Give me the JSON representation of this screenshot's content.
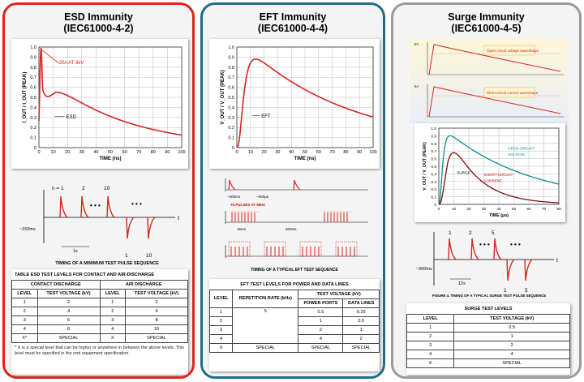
{
  "esd": {
    "title_line1": "ESD Immunity",
    "title_line2": "(IEC61000-4-2)",
    "graph": {
      "ylabel": "I_OUT / I_OUT (PEAK)",
      "xlabel": "TIME (ns)",
      "xticks": [
        "0",
        "10",
        "20",
        "30",
        "40",
        "50",
        "60",
        "70",
        "80",
        "90",
        "100"
      ],
      "yticks": [
        "0",
        "0.1",
        "0.2",
        "0.3",
        "0.4",
        "0.5",
        "0.6",
        "0.7",
        "0.8",
        "0.9",
        "1.0"
      ],
      "annotation": "30A AT 8kV",
      "curve_label": "ESD"
    },
    "pulse": {
      "labels": [
        "n = 1",
        "2",
        "10",
        "1",
        "10"
      ],
      "t_label": "t",
      "gap_label": "~150ms",
      "period_label": "1s",
      "caption": "TIMING OF A MINIMUM TEST PULSE SEQUENCE"
    },
    "table": {
      "caption": "TABLE     ESD TEST LEVELS FOR CONTACT AND AIR-DISCHARGE",
      "group_headers": [
        "CONTACT DISCHARGE",
        "AIR DISCHARGE"
      ],
      "col_headers": [
        "LEVEL",
        "TEST VOLTAGE (kV)",
        "LEVEL",
        "TEST VOLTAGE (kV)"
      ],
      "rows": [
        [
          "1",
          "2",
          "1",
          "2"
        ],
        [
          "2",
          "4",
          "2",
          "4"
        ],
        [
          "3",
          "6",
          "3",
          "8"
        ],
        [
          "4",
          "8",
          "4",
          "15"
        ],
        [
          "X*",
          "SPECIAL",
          "X",
          "SPECIAL"
        ]
      ],
      "note": "* X is a special level that can be higher or anywhere in between the above levels. This level must be specified in the end equipment specification."
    }
  },
  "eft": {
    "title_line1": "EFT Immunity",
    "title_line2": "(IEC61000-4-4)",
    "graph": {
      "ylabel": "V_OUT / V_OUT (PEAK)",
      "xlabel": "TIME (ns)",
      "xticks": [
        "0",
        "10",
        "20",
        "30",
        "40",
        "50",
        "60",
        "70",
        "80",
        "90",
        "100"
      ],
      "yticks": [
        "0",
        "0.1",
        "0.2",
        "0.3",
        "0.4",
        "0.5",
        "0.6",
        "0.7",
        "0.8",
        "0.9",
        "1.0"
      ],
      "curve_label": "EFT"
    },
    "sequence": {
      "caption": "TIMING OF A TYPICAL EFT TEST SEQUENCE",
      "labels": [
        "~400ms",
        "~300μs",
        "75 PULSES AT 5kHz",
        "15ms",
        "300ms"
      ]
    },
    "table": {
      "caption": "EFT TEST LEVELS FOR POWER AND DATA LINES",
      "col_headers": [
        "LEVEL",
        "REPETITION RATE (kHz)",
        "TEST VOLTAGE (kV)",
        "POWER PORTS",
        "DATA LINES"
      ],
      "rate": "5",
      "rows": [
        [
          "1",
          "0.5",
          "0.25"
        ],
        [
          "2",
          "1",
          "0.5"
        ],
        [
          "3",
          "2",
          "1"
        ],
        [
          "4",
          "4",
          "2"
        ],
        [
          "X",
          "SPECIAL",
          "SPECIAL"
        ]
      ],
      "special_rate": "SPECIAL"
    }
  },
  "surge": {
    "title_line1": "Surge Immunity",
    "title_line2": "(IEC61000-4-5)",
    "wave_top": {
      "legend": "Open-circuit voltage waveshape",
      "axis": "kV"
    },
    "wave_bottom": {
      "legend": "Short-circuit current waveshape",
      "axis": "kA"
    },
    "graph": {
      "ylabel": "V_OUT / V_OUT (PEAK)",
      "xlabel": "TIME (μs)",
      "xticks": [
        "0",
        "10",
        "20",
        "30",
        "40",
        "50",
        "60",
        "70",
        "80"
      ],
      "yticks": [
        "0",
        "0.1",
        "0.2",
        "0.3",
        "0.4",
        "0.5",
        "0.6",
        "0.7",
        "0.8",
        "0.9",
        "1.0"
      ],
      "label_open": "OPEN-CIRCUIT VOLTAGE",
      "label_short": "SHORT-CIRCUIT CURRENT",
      "label_surge": "SURGE"
    },
    "pulse": {
      "labels": [
        "1",
        "2",
        "5",
        "1",
        "5"
      ],
      "t_label": "t",
      "gap_label": "~200ms",
      "period_label": "12s",
      "caption": "FIGURE 4.  TIMING OF A TYPICAL SURGE TEST PULSE SEQUENCE"
    },
    "table": {
      "caption": "SURGE TEST LEVELS",
      "col_headers": [
        "LEVEL",
        "TEST VOLTAGE (kV)"
      ],
      "rows": [
        [
          "1",
          "0.5"
        ],
        [
          "2",
          "1"
        ],
        [
          "3",
          "2"
        ],
        [
          "4",
          "4"
        ],
        [
          "X",
          "SPECIAL"
        ]
      ]
    }
  },
  "colors": {
    "esd_border": "#e2231a",
    "eft_border": "#1e6e86",
    "surge_border": "#9a9a9a",
    "curve": "#d7261e",
    "teal": "#0a8f7f",
    "dark_red": "#7a1010"
  }
}
